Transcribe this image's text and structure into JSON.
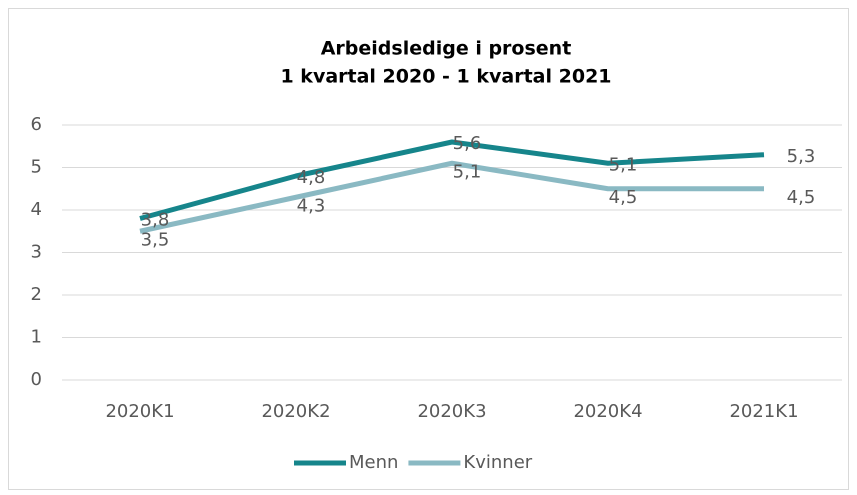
{
  "chart_data": {
    "type": "line",
    "title": [
      "Arbeidsledige i prosent",
      "1 kvartal 2020 - 1 kvartal 2021"
    ],
    "categories": [
      "2020K1",
      "2020K2",
      "2020K3",
      "2020K4",
      "2021K1"
    ],
    "series": [
      {
        "name": "Menn",
        "color": "#16858b",
        "values": [
          3.8,
          4.8,
          5.6,
          5.1,
          5.3
        ],
        "value_labels": [
          "3,8",
          "4,8",
          "5,6",
          "5,1",
          "5,3"
        ]
      },
      {
        "name": "Kvinner",
        "color": "#8ab9c3",
        "values": [
          3.5,
          4.3,
          5.1,
          4.5,
          4.5
        ],
        "value_labels": [
          "3,5",
          "4,3",
          "5,1",
          "4,5",
          "4,5"
        ]
      }
    ],
    "ylim": [
      0,
      6
    ],
    "yticks": [
      0,
      1,
      2,
      3,
      4,
      5,
      6
    ],
    "grid": true,
    "legend": "bottom"
  }
}
